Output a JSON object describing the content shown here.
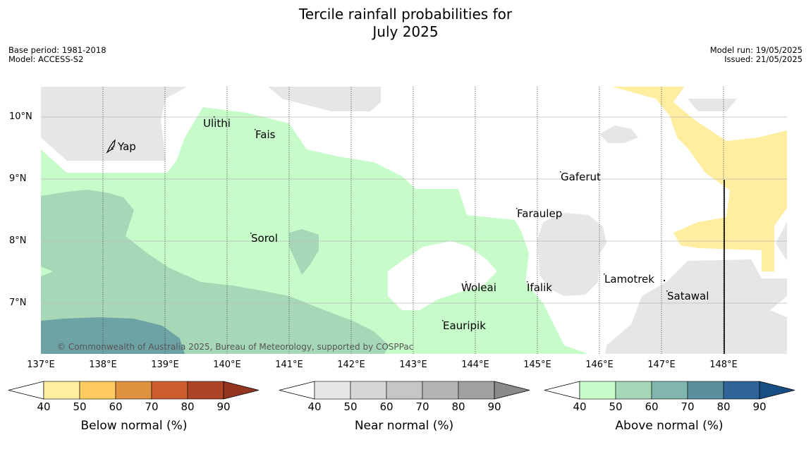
{
  "title_line1": "Tercile rainfall probabilities for",
  "title_line2": "July 2025",
  "base_period": "Base period: 1981-2018",
  "model": "Model: ACCESS-S2",
  "model_run": "Model run: 19/05/2025",
  "issued": "Issued: 21/05/2025",
  "lat_labels": [
    "10°N",
    "9°N",
    "8°N",
    "7°N"
  ],
  "lon_labels": [
    "137°E",
    "138°E",
    "139°E",
    "140°E",
    "141°E",
    "142°E",
    "143°E",
    "144°E",
    "145°E",
    "146°E",
    "147°E",
    "148°E"
  ],
  "places": [
    "Ulithi",
    "Fais",
    "Yap",
    "Gaferut",
    "Faraulep",
    "Sorol",
    "Lamotrek",
    "Woleai",
    "Ifalik",
    "Satawal",
    "Eauripik"
  ],
  "copyright": "© Commonwealth of Australia 2025, Bureau of Meteorology, supported by COSPPac",
  "colorbars": [
    {
      "label": "Below normal (%)",
      "ticks": [
        "40",
        "50",
        "60",
        "70",
        "80",
        "90"
      ],
      "colors": [
        "#ffeda0",
        "#fecb5e",
        "#e0913f",
        "#cd5f2e",
        "#ad4426",
        "#943520"
      ]
    },
    {
      "label": "Near normal (%)",
      "ticks": [
        "40",
        "50",
        "60",
        "70",
        "80",
        "90"
      ],
      "colors": [
        "#e6e6e6",
        "#d6d6d6",
        "#c6c6c6",
        "#b3b3b3",
        "#a0a0a0",
        "#8a8a8a"
      ]
    },
    {
      "label": "Above normal (%)",
      "ticks": [
        "40",
        "50",
        "60",
        "70",
        "80",
        "90"
      ],
      "colors": [
        "#c7fcca",
        "#a6d8b8",
        "#80b6ae",
        "#5b8f9e",
        "#2e6498",
        "#174f85"
      ]
    }
  ]
}
